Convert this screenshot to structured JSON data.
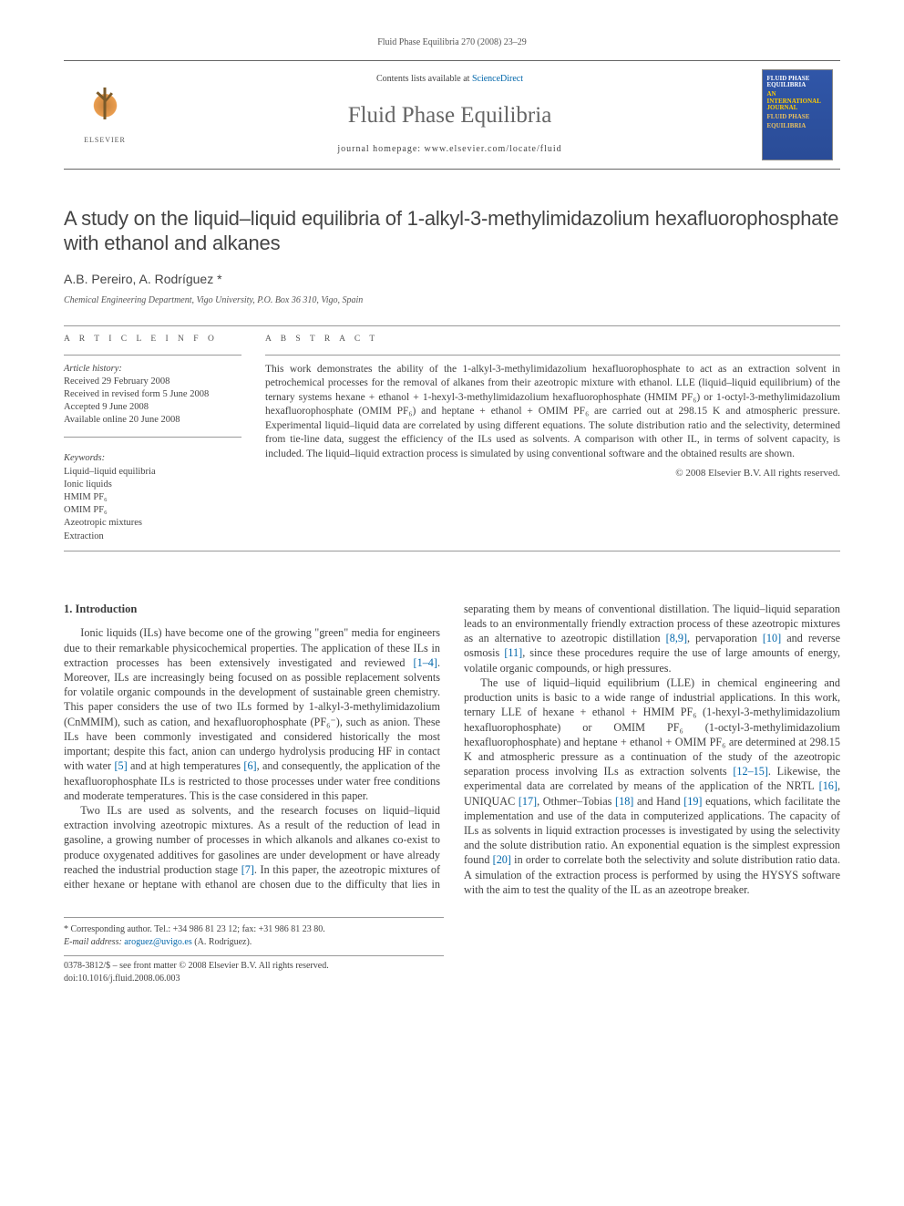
{
  "header": {
    "citation": "Fluid Phase Equilibria 270 (2008) 23–29",
    "contents_prefix": "Contents lists available at ",
    "contents_link": "ScienceDirect",
    "journal_name": "Fluid Phase Equilibria",
    "homepage_prefix": "journal homepage: ",
    "homepage_url": "www.elsevier.com/locate/fluid",
    "elsevier_label": "ELSEVIER",
    "thumb_line1": "FLUID PHASE",
    "thumb_line2": "EQUILIBRIA",
    "thumb_line3": "AN INTERNATIONAL JOURNAL",
    "thumb_line4": "FLUID PHASE",
    "thumb_line5": "EQUILIBRIA"
  },
  "article": {
    "title": "A study on the liquid–liquid equilibria of 1-alkyl-3-methylimidazolium hexafluorophosphate with ethanol and alkanes",
    "authors": "A.B. Pereiro, A. Rodríguez *",
    "affiliation": "Chemical Engineering Department, Vigo University, P.O. Box 36 310, Vigo, Spain"
  },
  "info": {
    "section_head": "A R T I C L E   I N F O",
    "history_label": "Article history:",
    "received": "Received 29 February 2008",
    "revised": "Received in revised form 5 June 2008",
    "accepted": "Accepted 9 June 2008",
    "online": "Available online 20 June 2008",
    "keywords_label": "Keywords:",
    "kw1": "Liquid–liquid equilibria",
    "kw2": "Ionic liquids",
    "kw3": "HMIM PF₆",
    "kw4": "OMIM PF₆",
    "kw5": "Azeotropic mixtures",
    "kw6": "Extraction"
  },
  "abstract": {
    "section_head": "A B S T R A C T",
    "text": "This work demonstrates the ability of the 1-alkyl-3-methylimidazolium hexafluorophosphate to act as an extraction solvent in petrochemical processes for the removal of alkanes from their azeotropic mixture with ethanol. LLE (liquid–liquid equilibrium) of the ternary systems hexane + ethanol + 1-hexyl-3-methylimidazolium hexafluorophosphate (HMIM PF₆) or 1-octyl-3-methylimidazolium hexafluorophosphate (OMIM PF₆) and heptane + ethanol + OMIM PF₆ are carried out at 298.15 K and atmospheric pressure. Experimental liquid–liquid data are correlated by using different equations. The solute distribution ratio and the selectivity, determined from tie-line data, suggest the efficiency of the ILs used as solvents. A comparison with other IL, in terms of solvent capacity, is included. The liquid–liquid extraction process is simulated by using conventional software and the obtained results are shown.",
    "copyright": "© 2008 Elsevier B.V. All rights reserved."
  },
  "body": {
    "h1": "1. Introduction",
    "p1a": "Ionic liquids (ILs) have become one of the growing \"green\" media for engineers due to their remarkable physicochemical properties. The application of these ILs in extraction processes has been extensively investigated and reviewed ",
    "p1_ref1": "[1–4]",
    "p1b": ". Moreover, ILs are increasingly being focused on as possible replacement solvents for volatile organic compounds in the development of sustainable green chemistry. This paper considers the use of two ILs formed by 1-alkyl-3-methylimidazolium (CnMMIM), such as cation, and hexafluorophosphate (PF₆⁻), such as anion. These ILs have been commonly investigated and considered historically the most important; despite this fact, anion can undergo hydrolysis producing HF in contact with water ",
    "p1_ref2": "[5]",
    "p1c": " and at high temperatures ",
    "p1_ref3": "[6]",
    "p1d": ", and consequently, the application of the hexafluorophosphate ILs is restricted to those processes under water free conditions and moderate temperatures. This is the case considered in this paper.",
    "p2a": "Two ILs are used as solvents, and the research focuses on liquid–liquid extraction involving azeotropic mixtures. As a result of the reduction of lead in gasoline, a growing number of processes in which alkanols and alkanes co-exist to produce oxygenated additives for gasolines are under development or have already reached the industrial production stage ",
    "p2_ref1": "[7]",
    "p2b": ". In this paper, the azeotropic mixtures of either hexane or heptane with ethanol are chosen due to the difficulty that lies in separating them by means of conventional distillation. The liquid–liquid separation leads to an environmentally friendly extraction process of these azeotropic mixtures as an alternative to azeotropic distillation ",
    "p2_ref2": "[8,9]",
    "p2c": ", pervaporation ",
    "p2_ref3": "[10]",
    "p2d": " and reverse osmosis ",
    "p2_ref4": "[11]",
    "p2e": ", since these procedures require the use of large amounts of energy, volatile organic compounds, or high pressures.",
    "p3a": "The use of liquid–liquid equilibrium (LLE) in chemical engineering and production units is basic to a wide range of industrial applications. In this work, ternary LLE of hexane + ethanol + HMIM PF₆ (1-hexyl-3-methylimidazolium hexafluorophosphate) or OMIM PF₆ (1-octyl-3-methylimidazolium hexafluorophosphate) and heptane + ethanol + OMIM PF₆ are determined at 298.15 K and atmospheric pressure as a continuation of the study of the azeotropic separation process involving ILs as extraction solvents ",
    "p3_ref1": "[12–15]",
    "p3b": ". Likewise, the experimental data are correlated by means of the application of the NRTL ",
    "p3_ref2": "[16]",
    "p3c": ", UNIQUAC ",
    "p3_ref3": "[17]",
    "p3d": ", Othmer–Tobias ",
    "p3_ref4": "[18]",
    "p3e": " and Hand ",
    "p3_ref5": "[19]",
    "p3f": " equations, which facilitate the implementation and use of the data in computerized applications. The capacity of ILs as solvents in liquid extraction processes is investigated by using the selectivity and the solute distribution ratio. An exponential equation is the simplest expression found ",
    "p3_ref6": "[20]",
    "p3g": " in order to correlate both the selectivity and solute distribution ratio data. A simulation of the extraction process is performed by using the HYSYS software with the aim to test the quality of the IL as an azeotrope breaker."
  },
  "footer": {
    "corr": "* Corresponding author. Tel.: +34 986 81 23 12; fax: +31 986 81 23 80.",
    "email_label": "E-mail address: ",
    "email": "aroguez@uvigo.es",
    "email_after": " (A. Rodríguez).",
    "issn": "0378-3812/$ – see front matter © 2008 Elsevier B.V. All rights reserved.",
    "doi": "doi:10.1016/j.fluid.2008.06.003"
  },
  "colors": {
    "link": "#0066aa",
    "rule": "#999999",
    "text": "#3a3a3a",
    "headgrey": "#666666"
  }
}
